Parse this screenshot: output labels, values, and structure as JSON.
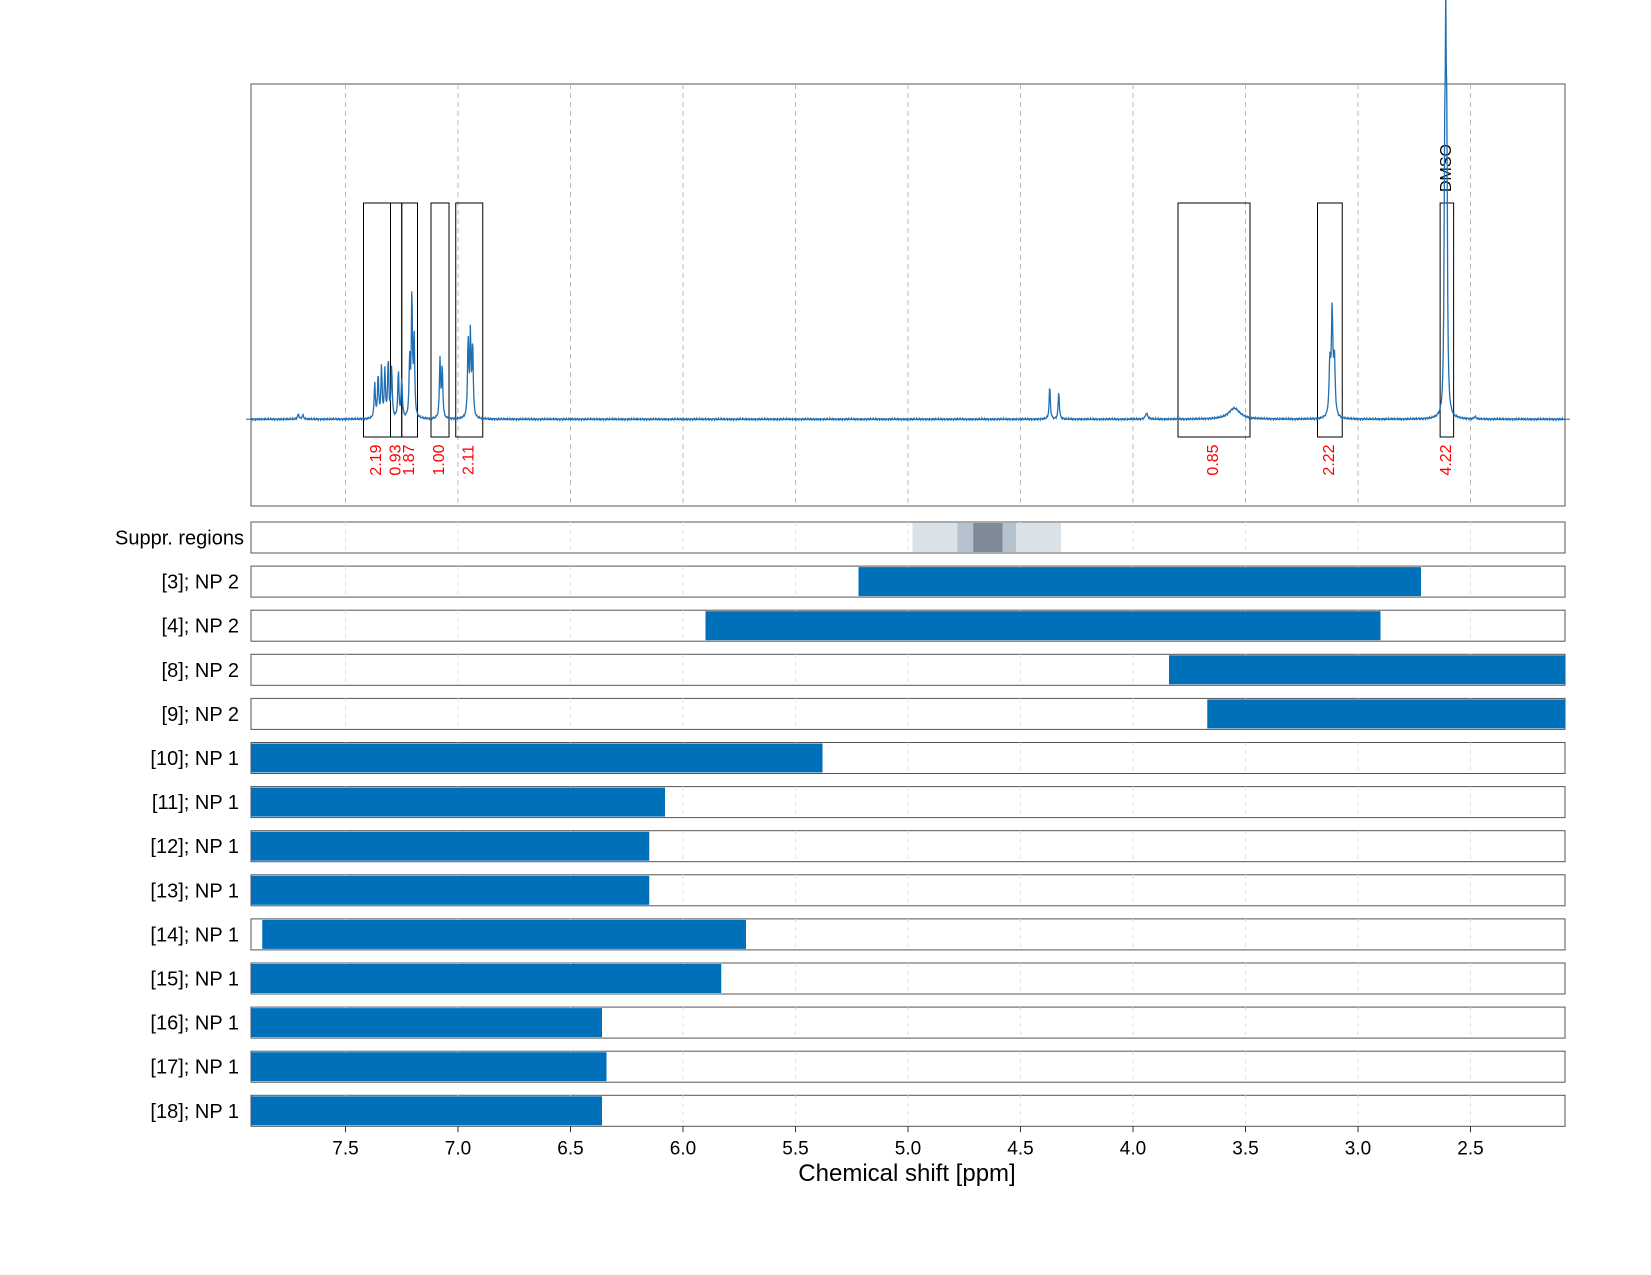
{
  "chart_data": {
    "type": "nmr-spectrum-with-range-bars",
    "xlabel": "Chemical shift [ppm]",
    "xlim": [
      7.92,
      2.08
    ],
    "x_ticks": [
      7.5,
      7.0,
      6.5,
      6.0,
      5.5,
      5.0,
      4.5,
      4.0,
      3.5,
      3.0,
      2.5
    ],
    "x_tick_labels": [
      "7.5",
      "7.0",
      "6.5",
      "6.0",
      "5.5",
      "5.0",
      "4.5",
      "4.0",
      "3.5",
      "3.0",
      "2.5"
    ],
    "grid": true,
    "spectrum": {
      "color": "#1f6fb4",
      "ylim": [
        -0.22,
        0.85
      ],
      "peaks": [
        {
          "center": 7.71,
          "height": 0.012,
          "width": 0.004
        },
        {
          "center": 7.69,
          "height": 0.01,
          "width": 0.004
        },
        {
          "center": 7.37,
          "height": 0.09,
          "width": 0.003
        },
        {
          "center": 7.355,
          "height": 0.11,
          "width": 0.003
        },
        {
          "center": 7.34,
          "height": 0.13,
          "width": 0.003
        },
        {
          "center": 7.325,
          "height": 0.12,
          "width": 0.003
        },
        {
          "center": 7.31,
          "height": 0.15,
          "width": 0.003
        },
        {
          "center": 7.295,
          "height": 0.13,
          "width": 0.003
        },
        {
          "center": 7.265,
          "height": 0.12,
          "width": 0.003
        },
        {
          "center": 7.25,
          "height": 0.1,
          "width": 0.003
        },
        {
          "center": 7.215,
          "height": 0.14,
          "width": 0.003
        },
        {
          "center": 7.205,
          "height": 0.31,
          "width": 0.003
        },
        {
          "center": 7.195,
          "height": 0.2,
          "width": 0.003
        },
        {
          "center": 7.08,
          "height": 0.15,
          "width": 0.003
        },
        {
          "center": 7.07,
          "height": 0.13,
          "width": 0.003
        },
        {
          "center": 6.955,
          "height": 0.2,
          "width": 0.003
        },
        {
          "center": 6.945,
          "height": 0.21,
          "width": 0.003
        },
        {
          "center": 6.935,
          "height": 0.19,
          "width": 0.003
        },
        {
          "center": 4.37,
          "height": 0.085,
          "width": 0.003
        },
        {
          "center": 4.33,
          "height": 0.07,
          "width": 0.003
        },
        {
          "center": 3.94,
          "height": 0.015,
          "width": 0.006
        },
        {
          "center": 3.55,
          "height": 0.028,
          "width": 0.03
        },
        {
          "center": 3.115,
          "height": 0.26,
          "width": 0.004
        },
        {
          "center": 3.105,
          "height": 0.14,
          "width": 0.004
        },
        {
          "center": 3.125,
          "height": 0.13,
          "width": 0.004
        },
        {
          "center": 2.61,
          "height": 0.82,
          "width": 0.003
        },
        {
          "center": 2.605,
          "height": 0.55,
          "width": 0.003
        },
        {
          "center": 2.615,
          "height": 0.5,
          "width": 0.003
        },
        {
          "center": 2.48,
          "height": 0.006,
          "width": 0.004
        }
      ]
    },
    "integral_regions": [
      {
        "start": 7.42,
        "end": 7.3,
        "label": "2.19"
      },
      {
        "start": 7.3,
        "end": 7.25,
        "label": "0.93"
      },
      {
        "start": 7.25,
        "end": 7.18,
        "label": "1.87"
      },
      {
        "start": 7.12,
        "end": 7.04,
        "label": "1.00"
      },
      {
        "start": 7.01,
        "end": 6.89,
        "label": "2.11"
      },
      {
        "start": 3.8,
        "end": 3.48,
        "label": "0.85"
      },
      {
        "start": 3.18,
        "end": 3.07,
        "label": "2.22"
      },
      {
        "start": 2.635,
        "end": 2.575,
        "label": "4.22",
        "annotation": "DMSO"
      }
    ],
    "suppression_label": "Suppr. regions",
    "suppression_regions": [
      {
        "start": 4.98,
        "end": 4.32,
        "shade": "#dae1e7"
      },
      {
        "start": 4.78,
        "end": 4.52,
        "shade": "#b5c1cc"
      },
      {
        "start": 4.71,
        "end": 4.58,
        "shade": "#7e8b97"
      }
    ],
    "bar_color": "#0070bb",
    "bars": [
      {
        "label": "[3]; NP 2",
        "start": 5.22,
        "end": 2.72
      },
      {
        "label": "[4]; NP 2",
        "start": 5.9,
        "end": 2.9
      },
      {
        "label": "[8]; NP 2",
        "start": 3.84,
        "end": 2.08
      },
      {
        "label": "[9]; NP 2",
        "start": 3.67,
        "end": 2.08
      },
      {
        "label": "[10]; NP 1",
        "start": 7.92,
        "end": 5.38
      },
      {
        "label": "[11]; NP 1",
        "start": 7.92,
        "end": 6.08
      },
      {
        "label": "[12]; NP 1",
        "start": 7.92,
        "end": 6.15
      },
      {
        "label": "[13]; NP 1",
        "start": 7.92,
        "end": 6.15
      },
      {
        "label": "[14]; NP 1",
        "start": 7.87,
        "end": 5.72
      },
      {
        "label": "[15]; NP 1",
        "start": 7.92,
        "end": 5.83
      },
      {
        "label": "[16]; NP 1",
        "start": 7.92,
        "end": 6.36
      },
      {
        "label": "[17]; NP 1",
        "start": 7.92,
        "end": 6.34
      },
      {
        "label": "[18]; NP 1",
        "start": 7.92,
        "end": 6.36
      }
    ]
  }
}
